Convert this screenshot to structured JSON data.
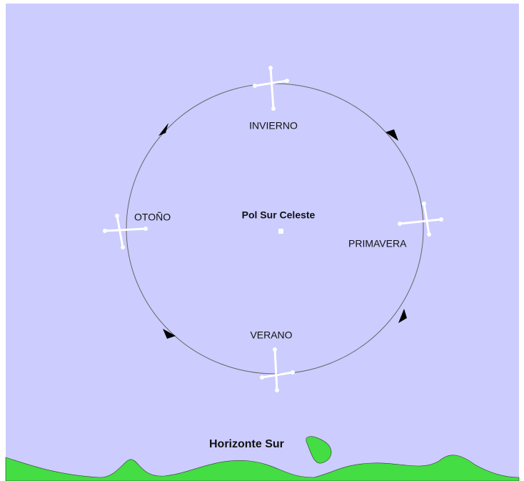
{
  "center_label": "Pol Sur Celeste",
  "seasons": [
    {
      "label": "INVIERNO"
    },
    {
      "label": "PRIMAVERA"
    },
    {
      "label": "VERANO"
    },
    {
      "label": "OTOÑO"
    }
  ],
  "horizon_label": "Horizonte Sur"
}
